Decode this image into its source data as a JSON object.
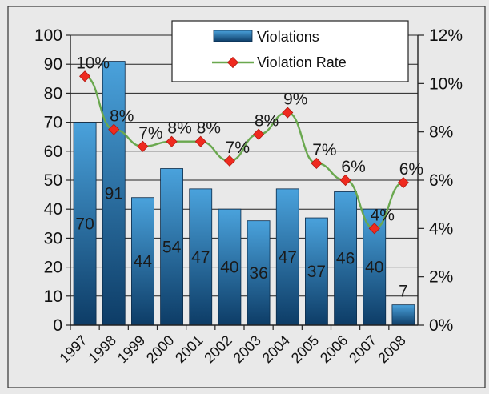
{
  "chart_data": {
    "type": "bar",
    "title": "",
    "xlabel": "",
    "ylabel": "",
    "categories": [
      "1997",
      "1998",
      "1999",
      "2000",
      "2001",
      "2002",
      "2003",
      "2004",
      "2005",
      "2006",
      "2007",
      "2008"
    ],
    "series": [
      {
        "name": "Violations",
        "type": "bar",
        "axis": "left",
        "values": [
          70,
          91,
          44,
          54,
          47,
          40,
          36,
          47,
          37,
          46,
          40,
          7
        ],
        "labels": [
          "70",
          "91",
          "44",
          "54",
          "47",
          "40",
          "36",
          "47",
          "37",
          "46",
          "40",
          "7"
        ]
      },
      {
        "name": "Violation Rate",
        "type": "line",
        "axis": "right",
        "values": [
          10.3,
          8.1,
          7.4,
          7.6,
          7.6,
          6.8,
          7.9,
          8.8,
          6.7,
          6.0,
          4.0,
          5.9
        ],
        "labels": [
          "10%",
          "8%",
          "7%",
          "8%",
          "8%",
          "7%",
          "8%",
          "9%",
          "7%",
          "6%",
          "4%",
          "6%"
        ]
      }
    ],
    "left_axis": {
      "min": 0,
      "max": 100,
      "step": 10,
      "ticks": [
        "0",
        "10",
        "20",
        "30",
        "40",
        "50",
        "60",
        "70",
        "80",
        "90",
        "100"
      ]
    },
    "right_axis": {
      "min": 0,
      "max": 12,
      "step": 2,
      "ticks": [
        "0%",
        "2%",
        "4%",
        "6%",
        "8%",
        "10%",
        "12%"
      ]
    },
    "grid": true,
    "legend_position": "top-right",
    "colors": {
      "bar_top": "#4aa2dc",
      "bar_bottom": "#0d3c66",
      "line": "#6aa84f",
      "marker": "#ef2a1f",
      "background": "#e9e9e9"
    }
  }
}
